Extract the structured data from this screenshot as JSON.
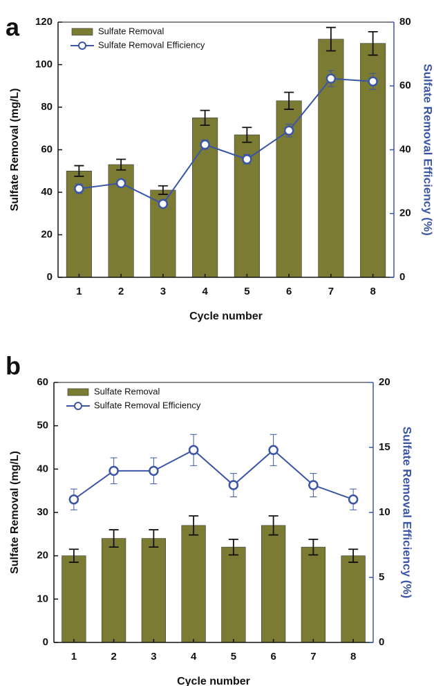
{
  "chart_data": [
    {
      "type": "bar",
      "panel_label": "a",
      "x_label": "Cycle number",
      "y_label": "Sulfate Removal (mg/L)",
      "y2_label": "Sulfate Removal Efficiency (%)",
      "categories": [
        "1",
        "2",
        "3",
        "4",
        "5",
        "6",
        "7",
        "8"
      ],
      "ylim": [
        0,
        120
      ],
      "yticks": [
        0,
        20,
        40,
        60,
        80,
        100,
        120
      ],
      "y2lim": [
        0,
        80
      ],
      "y2ticks": [
        0,
        20,
        40,
        60,
        80
      ],
      "series": [
        {
          "name": "Sulfate Removal",
          "type": "bar",
          "color": "#7b7b34",
          "values": [
            50,
            53,
            41,
            75,
            67,
            83,
            112,
            110
          ],
          "errors": [
            2.5,
            2.5,
            2,
            3.5,
            3.5,
            4,
            5.5,
            5.5
          ]
        },
        {
          "name": "Sulfate Removal Efficiency",
          "type": "line",
          "axis": "y2",
          "color": "#3b55a6",
          "values": [
            27.8,
            29.5,
            23,
            41.6,
            37,
            46,
            62.3,
            61.4
          ],
          "errors": [
            1.5,
            1,
            1,
            1.5,
            1.5,
            2,
            2.5,
            2.5
          ]
        }
      ]
    },
    {
      "type": "bar",
      "panel_label": "b",
      "x_label": "Cycle number",
      "y_label": "Sulfate Removal (mg/L)",
      "y2_label": "Sulfate Removal Efficiency (%)",
      "categories": [
        "1",
        "2",
        "3",
        "4",
        "5",
        "6",
        "7",
        "8"
      ],
      "ylim": [
        0,
        60
      ],
      "yticks": [
        0,
        10,
        20,
        30,
        40,
        50,
        60
      ],
      "y2lim": [
        0,
        20
      ],
      "y2ticks": [
        0,
        5,
        10,
        15,
        20
      ],
      "series": [
        {
          "name": "Sulfate Removal",
          "type": "bar",
          "color": "#7b7b34",
          "values": [
            20,
            24,
            24,
            27,
            22,
            27,
            22,
            20
          ],
          "errors": [
            1.5,
            2,
            2,
            2.2,
            1.8,
            2.2,
            1.8,
            1.5
          ]
        },
        {
          "name": "Sulfate Removal Efficiency",
          "type": "line",
          "axis": "y2",
          "color": "#3b55a6",
          "values": [
            11,
            13.2,
            13.2,
            14.8,
            12.1,
            14.8,
            12.1,
            11
          ],
          "errors": [
            0.8,
            1,
            1,
            1.2,
            0.9,
            1.2,
            0.9,
            0.8
          ]
        }
      ]
    }
  ]
}
